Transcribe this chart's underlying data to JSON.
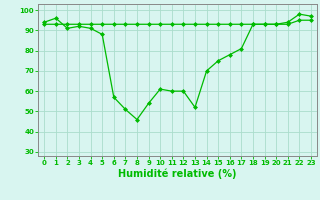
{
  "x": [
    0,
    1,
    2,
    3,
    4,
    5,
    6,
    7,
    8,
    9,
    10,
    11,
    12,
    13,
    14,
    15,
    16,
    17,
    18,
    19,
    20,
    21,
    22,
    23
  ],
  "y_main": [
    94,
    96,
    91,
    92,
    91,
    88,
    57,
    51,
    46,
    54,
    61,
    60,
    60,
    52,
    70,
    75,
    78,
    81,
    93,
    93,
    93,
    94,
    98,
    97
  ],
  "y_ref": [
    93,
    93,
    93,
    93,
    93,
    93,
    93,
    93,
    93,
    93,
    93,
    93,
    93,
    93,
    93,
    93,
    93,
    93,
    93,
    93,
    93,
    93,
    95,
    95
  ],
  "xlabel": "Humidité relative (%)",
  "xlim": [
    -0.5,
    23.5
  ],
  "ylim": [
    28,
    103
  ],
  "yticks": [
    30,
    40,
    50,
    60,
    70,
    80,
    90,
    100
  ],
  "xticks": [
    0,
    1,
    2,
    3,
    4,
    5,
    6,
    7,
    8,
    9,
    10,
    11,
    12,
    13,
    14,
    15,
    16,
    17,
    18,
    19,
    20,
    21,
    22,
    23
  ],
  "line_color": "#00bb00",
  "bg_color": "#d8f5f0",
  "grid_color": "#aaddcc",
  "spine_color": "#888888",
  "tick_label_fontsize": 5.0,
  "xlabel_fontsize": 7.0
}
